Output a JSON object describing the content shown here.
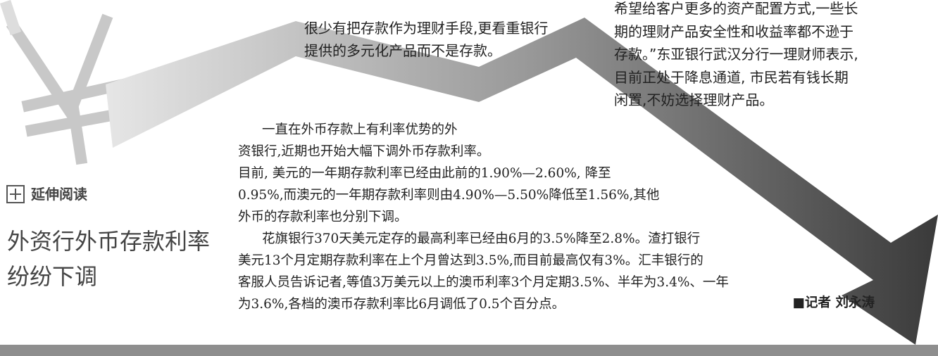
{
  "middle_column": {
    "lines": [
      "很少有把存款作为理财手段,更看重银行",
      "提供的多元化产品而不是存款。"
    ]
  },
  "right_column": {
    "lines": [
      "希望给客户更多的资产配置方式,一些长",
      "期的理财产品安全性和收益率都不逊于",
      "存款。”东亚银行武汉分行一理财师表示,",
      "目前正处于降息通道, 市民若有钱长期",
      "闲置,不妨选择理财产品。"
    ]
  },
  "sidebar": {
    "label": "延伸阅读",
    "headline": [
      "外资行外币存款利率",
      "纷纷下调"
    ]
  },
  "article": {
    "lines": [
      "一直在外币存款上有利率优势的外",
      "资银行,近期也开始大幅下调外币存款利率。",
      "目前, 美元的一年期存款利率已经由此前的1.90%—2.60%, 降至",
      "0.95%,而澳元的一年期存款利率则由4.90%—5.50%降低至1.56%,其他",
      "外币的存款利率也分别下调。",
      "花旗银行370天美元定存的最高利率已经由6月的3.5%降至2.8%。渣打银行",
      "美元13个月定期存款利率在上个月曾达到3.5%,而目前最高仅有3%。汇丰银行的",
      "客服人员告诉记者,等值3万美元以上的澳币利率3个月定期3.5%、半年为3.4%、一年",
      "为3.6%,各档的澳币存款利率比6月调低了0.5个百分点。"
    ],
    "byline": "■记者 刘永涛"
  }
}
